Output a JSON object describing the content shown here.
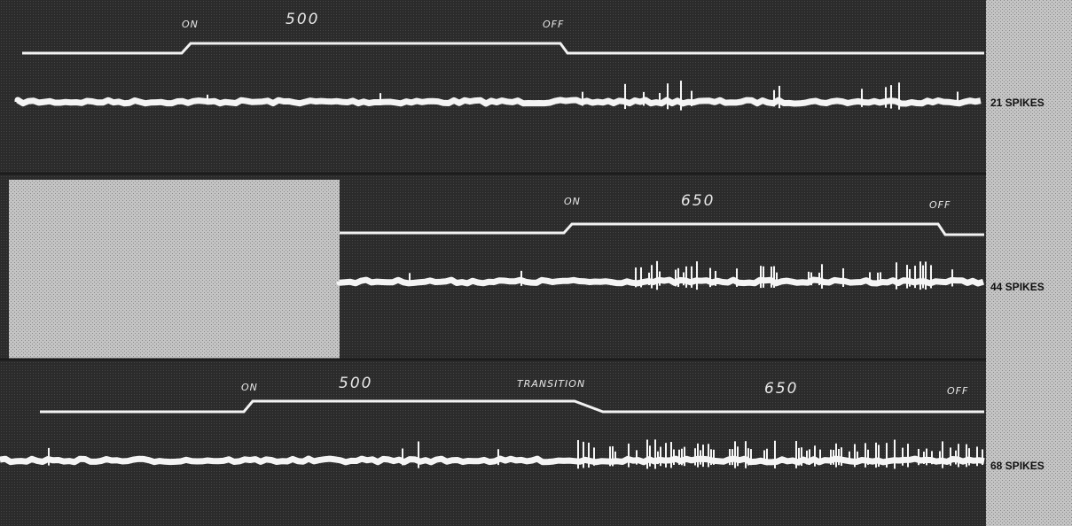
{
  "panels": [
    {
      "labels": [
        "ON",
        "500",
        "OFF"
      ],
      "spikes": "21 SPIKES"
    },
    {
      "labels": [
        "ON",
        "650",
        "OFF"
      ],
      "spikes": "44 SPIKES"
    },
    {
      "labels": [
        "ON",
        "500",
        "TRANSITION",
        "650",
        "OFF"
      ],
      "spikes": "68 SPIKES"
    }
  ]
}
